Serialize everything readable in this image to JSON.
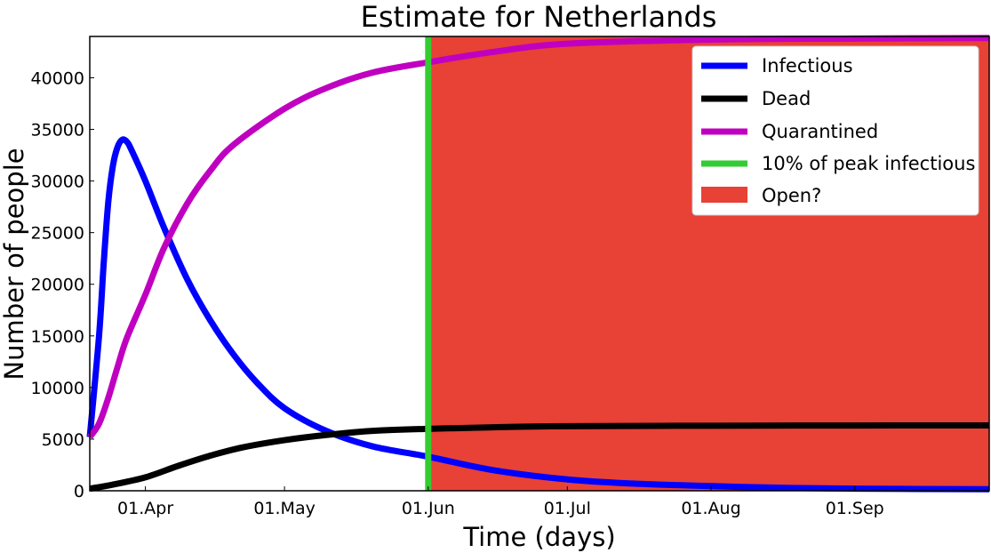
{
  "chart_data": {
    "type": "line",
    "title": "Estimate for Netherlands",
    "xlabel": "Time (days)",
    "ylabel": "Number of people",
    "x_unit": "date (2020)",
    "x_range": [
      "2020-03-20",
      "2020-09-30"
    ],
    "ylim": [
      0,
      44000
    ],
    "x_ticks": [
      {
        "date": "2020-04-01",
        "label": "01.Apr"
      },
      {
        "date": "2020-05-01",
        "label": "01.May"
      },
      {
        "date": "2020-06-01",
        "label": "01.Jun"
      },
      {
        "date": "2020-07-01",
        "label": "01.Jul"
      },
      {
        "date": "2020-08-01",
        "label": "01.Aug"
      },
      {
        "date": "2020-09-01",
        "label": "01.Sep"
      }
    ],
    "y_ticks": [
      0,
      5000,
      10000,
      15000,
      20000,
      25000,
      30000,
      35000,
      40000
    ],
    "grid": false,
    "legend_position": "top-right",
    "series": [
      {
        "name": "Infectious",
        "color": "#0000ff",
        "points": [
          [
            "2020-03-20",
            5200
          ],
          [
            "2020-03-22",
            15000
          ],
          [
            "2020-03-23",
            22000
          ],
          [
            "2020-03-24",
            28000
          ],
          [
            "2020-03-25",
            31500
          ],
          [
            "2020-03-26",
            33300
          ],
          [
            "2020-03-27",
            34000
          ],
          [
            "2020-03-28",
            33800
          ],
          [
            "2020-03-29",
            33000
          ],
          [
            "2020-04-01",
            30000
          ],
          [
            "2020-04-05",
            25500
          ],
          [
            "2020-04-10",
            20500
          ],
          [
            "2020-04-15",
            16500
          ],
          [
            "2020-04-20",
            13200
          ],
          [
            "2020-04-25",
            10500
          ],
          [
            "2020-05-01",
            8000
          ],
          [
            "2020-05-10",
            5800
          ],
          [
            "2020-05-20",
            4300
          ],
          [
            "2020-06-01",
            3300
          ],
          [
            "2020-06-15",
            2000
          ],
          [
            "2020-07-01",
            1100
          ],
          [
            "2020-07-15",
            700
          ],
          [
            "2020-08-01",
            450
          ],
          [
            "2020-08-15",
            300
          ],
          [
            "2020-09-01",
            200
          ],
          [
            "2020-09-30",
            150
          ]
        ]
      },
      {
        "name": "Dead",
        "color": "#000000",
        "points": [
          [
            "2020-03-20",
            200
          ],
          [
            "2020-03-25",
            600
          ],
          [
            "2020-04-01",
            1300
          ],
          [
            "2020-04-08",
            2400
          ],
          [
            "2020-04-15",
            3400
          ],
          [
            "2020-04-22",
            4200
          ],
          [
            "2020-05-01",
            4900
          ],
          [
            "2020-05-10",
            5400
          ],
          [
            "2020-05-20",
            5800
          ],
          [
            "2020-06-01",
            6000
          ],
          [
            "2020-06-15",
            6150
          ],
          [
            "2020-07-01",
            6250
          ],
          [
            "2020-08-01",
            6300
          ],
          [
            "2020-09-01",
            6320
          ],
          [
            "2020-09-30",
            6330
          ]
        ]
      },
      {
        "name": "Quarantined",
        "color": "#c000c0",
        "points": [
          [
            "2020-03-20",
            5200
          ],
          [
            "2020-03-22",
            6500
          ],
          [
            "2020-03-24",
            9000
          ],
          [
            "2020-03-26",
            12000
          ],
          [
            "2020-03-28",
            14800
          ],
          [
            "2020-04-01",
            19000
          ],
          [
            "2020-04-05",
            23500
          ],
          [
            "2020-04-10",
            27800
          ],
          [
            "2020-04-15",
            31000
          ],
          [
            "2020-04-20",
            33500
          ],
          [
            "2020-05-01",
            37000
          ],
          [
            "2020-05-10",
            39000
          ],
          [
            "2020-05-20",
            40500
          ],
          [
            "2020-06-01",
            41500
          ],
          [
            "2020-06-15",
            42500
          ],
          [
            "2020-07-01",
            43300
          ],
          [
            "2020-08-01",
            43700
          ],
          [
            "2020-09-01",
            43800
          ],
          [
            "2020-09-30",
            43850
          ]
        ]
      }
    ],
    "vertical_line": {
      "name": "10% of peak infectious",
      "color": "#33cc33",
      "x": "2020-06-01"
    },
    "shaded_region": {
      "name": "Open?",
      "color": "#e84135",
      "x_start": "2020-06-01",
      "x_end": "2020-09-30"
    }
  }
}
